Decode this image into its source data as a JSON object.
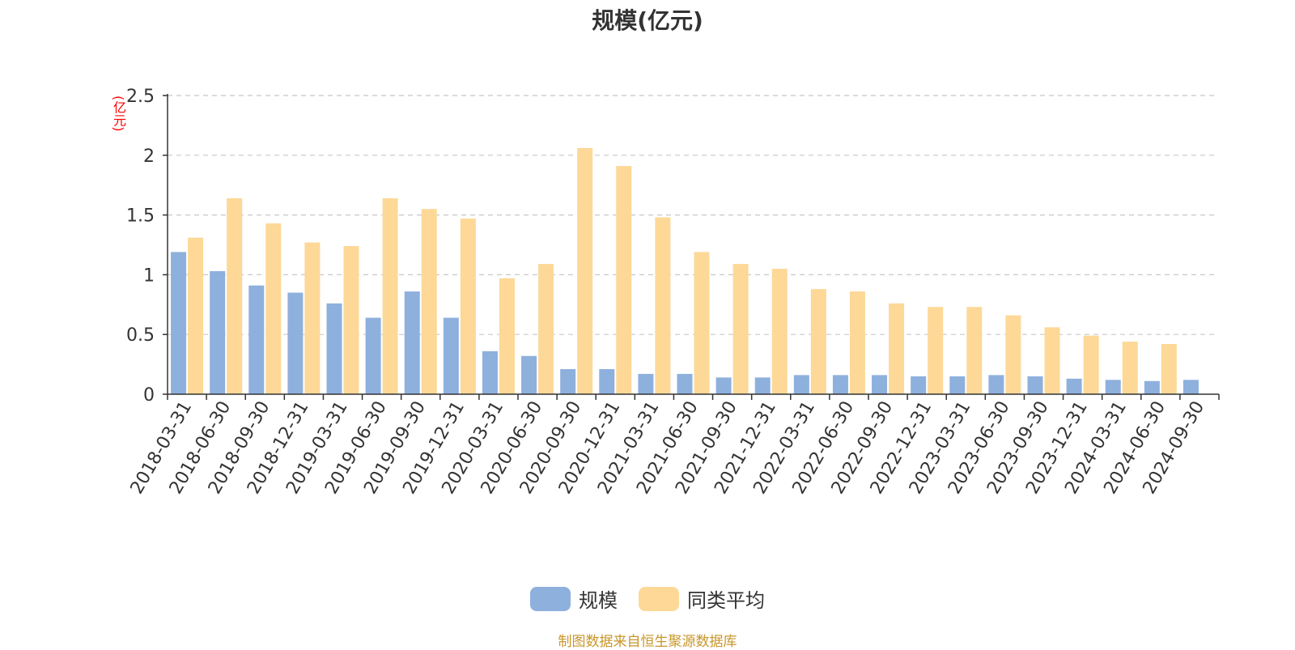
{
  "chart_data": {
    "type": "bar",
    "title": "规模(亿元)",
    "ylabel": "(亿元)",
    "xlabel": "",
    "ylim": [
      0,
      2.5
    ],
    "yticks": [
      "0",
      "0.5",
      "1",
      "1.5",
      "2",
      "2.5"
    ],
    "grid": true,
    "legend_position": "bottom",
    "categories": [
      "2018-03-31",
      "2018-06-30",
      "2018-09-30",
      "2018-12-31",
      "2019-03-31",
      "2019-06-30",
      "2019-09-30",
      "2019-12-31",
      "2020-03-31",
      "2020-06-30",
      "2020-09-30",
      "2020-12-31",
      "2021-03-31",
      "2021-06-30",
      "2021-09-30",
      "2021-12-31",
      "2022-03-31",
      "2022-06-30",
      "2022-09-30",
      "2022-12-31",
      "2023-03-31",
      "2023-06-30",
      "2023-09-30",
      "2023-12-31",
      "2024-03-31",
      "2024-06-30",
      "2024-09-30"
    ],
    "series": [
      {
        "name": "规模",
        "color": "#8eb0dd",
        "values": [
          1.19,
          1.03,
          0.91,
          0.85,
          0.76,
          0.64,
          0.86,
          0.64,
          0.36,
          0.32,
          0.21,
          0.21,
          0.17,
          0.17,
          0.14,
          0.14,
          0.16,
          0.16,
          0.16,
          0.15,
          0.15,
          0.16,
          0.15,
          0.13,
          0.12,
          0.11,
          0.12
        ]
      },
      {
        "name": "同类平均",
        "color": "#fdd897",
        "values": [
          1.31,
          1.64,
          1.43,
          1.27,
          1.24,
          1.64,
          1.55,
          1.47,
          0.97,
          1.09,
          2.06,
          1.91,
          1.48,
          1.19,
          1.09,
          1.05,
          0.88,
          0.86,
          0.76,
          0.73,
          0.73,
          0.66,
          0.56,
          0.49,
          0.44,
          0.42,
          null
        ]
      }
    ]
  },
  "legend": [
    {
      "label": "规模",
      "color": "#8eb0dd"
    },
    {
      "label": "同类平均",
      "color": "#fdd897"
    }
  ],
  "source_note": "制图数据来自恒生聚源数据库"
}
